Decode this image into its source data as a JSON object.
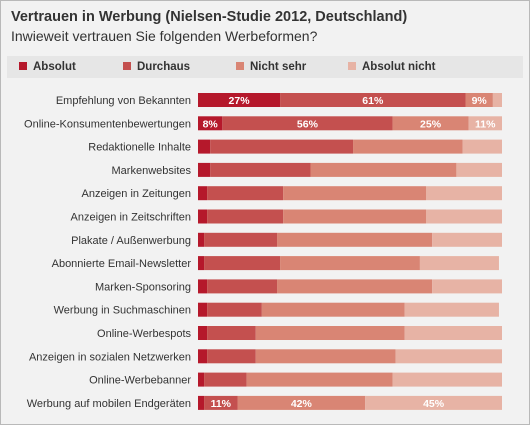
{
  "chart_data": {
    "type": "bar",
    "orientation": "horizontal",
    "stacked": true,
    "title": "Vertrauen in Werbung (Nielsen-Studie 2012, Deutschland)",
    "subtitle": "Inwieweit vertrauen Sie folgenden Werbeformen?",
    "legend_position": "top",
    "xlim": [
      0,
      100
    ],
    "categories": [
      "Empfehlung von Bekannten",
      "Online-Konsumentenbewertungen",
      "Redaktionelle Inhalte",
      "Markenwebsites",
      "Anzeigen in Zeitungen",
      "Anzeigen in Zeitschriften",
      "Plakate / Außenwerbung",
      "Abonnierte Email-Newsletter",
      "Marken-Sponsoring",
      "Werbung in Suchmaschinen",
      "Online-Werbespots",
      "Anzeigen in sozialen Netzwerken",
      "Online-Werbebanner",
      "Werbung auf mobilen Endgeräten"
    ],
    "series": [
      {
        "name": "Absolut",
        "color": "#b5182b",
        "values": [
          27,
          8,
          4,
          4,
          3,
          3,
          2,
          2,
          3,
          3,
          3,
          3,
          2,
          2
        ]
      },
      {
        "name": "Durchaus",
        "color": "#c4504f",
        "values": [
          61,
          56,
          47,
          33,
          25,
          25,
          24,
          25,
          23,
          18,
          16,
          16,
          14,
          11
        ]
      },
      {
        "name": "Nicht sehr",
        "color": "#d98574",
        "values": [
          9,
          25,
          36,
          48,
          47,
          47,
          51,
          46,
          51,
          47,
          49,
          46,
          48,
          42
        ]
      },
      {
        "name": "Absolut nicht",
        "color": "#e7b3a5",
        "values": [
          3,
          11,
          13,
          15,
          25,
          25,
          23,
          26,
          23,
          31,
          32,
          35,
          36,
          45
        ]
      }
    ],
    "data_labels": [
      {
        "category_index": 0,
        "series_index": 0,
        "text": "27%"
      },
      {
        "category_index": 0,
        "series_index": 1,
        "text": "61%"
      },
      {
        "category_index": 0,
        "series_index": 2,
        "text": "9%"
      },
      {
        "category_index": 1,
        "series_index": 0,
        "text": "8%"
      },
      {
        "category_index": 1,
        "series_index": 1,
        "text": "56%"
      },
      {
        "category_index": 1,
        "series_index": 2,
        "text": "25%"
      },
      {
        "category_index": 1,
        "series_index": 3,
        "text": "11%"
      },
      {
        "category_index": 13,
        "series_index": 1,
        "text": "11%"
      },
      {
        "category_index": 13,
        "series_index": 2,
        "text": "42%"
      },
      {
        "category_index": 13,
        "series_index": 3,
        "text": "45%"
      }
    ]
  }
}
